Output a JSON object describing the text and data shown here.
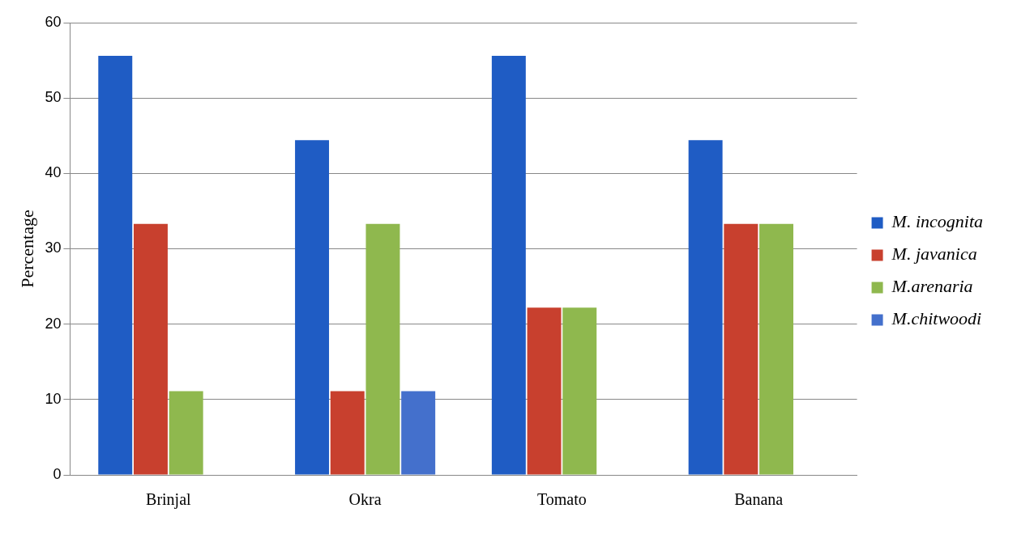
{
  "chart_data": {
    "type": "bar",
    "ylabel": "Percentage",
    "categories": [
      "Brinjal",
      "Okra",
      "Tomato",
      "Banana"
    ],
    "series": [
      {
        "name": "M. incognita",
        "color": "#1f5cc4",
        "values": [
          55.6,
          44.4,
          55.6,
          44.4
        ]
      },
      {
        "name": "M. javanica",
        "color": "#c8402e",
        "values": [
          33.3,
          11.1,
          22.2,
          33.3
        ]
      },
      {
        "name": "M.arenaria",
        "color": "#8fb84e",
        "values": [
          11.1,
          33.3,
          22.2,
          33.3
        ]
      },
      {
        "name": "M.chitwoodi",
        "color": "#4470cc",
        "values": [
          0,
          11.1,
          0,
          0
        ]
      }
    ],
    "ylim": [
      0,
      60
    ],
    "yticks": [
      0,
      10,
      20,
      30,
      40,
      50,
      60
    ],
    "grid": "y",
    "legend": "right"
  }
}
